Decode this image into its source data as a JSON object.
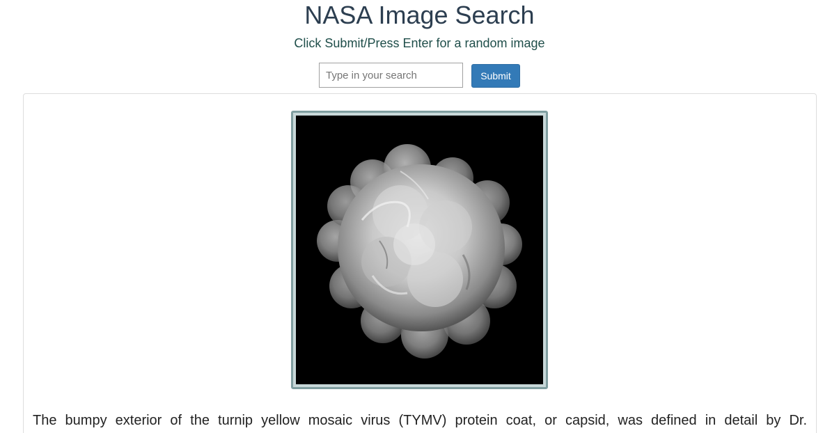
{
  "header": {
    "title": "NASA Image Search",
    "subtitle": "Click Submit/Press Enter for a random image"
  },
  "search": {
    "placeholder": "Type in your search",
    "value": "",
    "submit_label": "Submit"
  },
  "result": {
    "image_icon": "virus-capsid-image",
    "description": "The bumpy exterior of the turnip yellow mosaic virus (TYMV) protein coat, or capsid, was defined in detail by Dr."
  },
  "colors": {
    "title": "#2c3e50",
    "subtitle": "#1f4e4a",
    "button": "#337ab7",
    "image_border": "#7f9ea0"
  }
}
